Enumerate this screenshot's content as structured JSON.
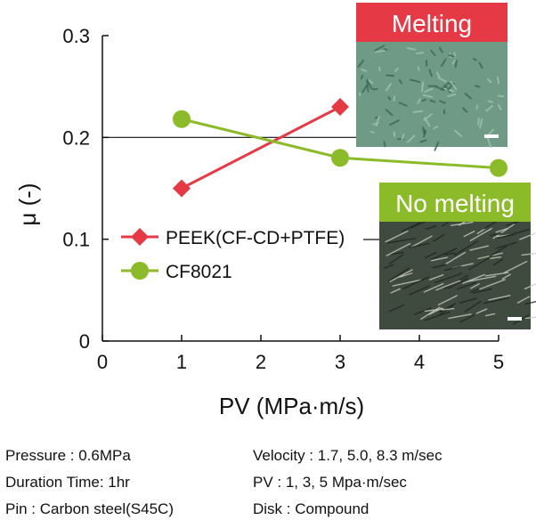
{
  "chart_data": {
    "type": "line",
    "xlabel": "PV (MPa·m/s)",
    "ylabel": "μ (-)",
    "xlim": [
      0,
      5
    ],
    "ylim": [
      0,
      0.3
    ],
    "x_ticks": [
      "0",
      "1",
      "2",
      "3",
      "4",
      "5"
    ],
    "y_ticks": [
      "0",
      "0.1",
      "0.2",
      "0.3"
    ],
    "grid": "horizontal line at 0.2",
    "legend_placement": "center-left",
    "series": [
      {
        "name": "PEEK(CF-CD+PTFE)",
        "marker": "diamond",
        "color": "#e63946",
        "x": [
          1,
          3
        ],
        "y": [
          0.15,
          0.23
        ]
      },
      {
        "name": "CF8021",
        "marker": "circle",
        "color": "#8cbb2a",
        "x": [
          1,
          3,
          5
        ],
        "y": [
          0.218,
          0.18,
          0.17
        ]
      }
    ],
    "annotations": [
      {
        "label": "Melting",
        "color": "#e63946",
        "points_to_series": "PEEK(CF-CD+PTFE)"
      },
      {
        "label": "No melting",
        "color": "#8cbb2a",
        "points_to_series": "CF8021"
      }
    ]
  },
  "conditions": {
    "left": [
      "Pressure  : 0.6MPa",
      "Duration Time: 1hr",
      "Pin :  Carbon steel(S45C)"
    ],
    "right": [
      "Velocity : 1.7, 5.0, 8.3 m/sec",
      "PV : 1, 3, 5 Mpa·m/sec",
      "Disk : Compound"
    ]
  }
}
